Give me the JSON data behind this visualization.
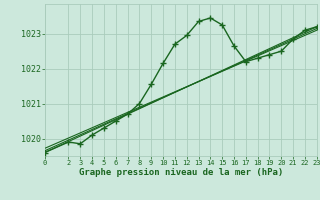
{
  "background_color": "#cce8dc",
  "grid_color": "#aaccbc",
  "line_color": "#1a6620",
  "title": "Graphe pression niveau de la mer (hPa)",
  "xlim": [
    0,
    23
  ],
  "ylim": [
    1019.5,
    1023.85
  ],
  "yticks": [
    1020,
    1021,
    1022,
    1023
  ],
  "xticks": [
    0,
    2,
    3,
    4,
    5,
    6,
    7,
    8,
    9,
    10,
    11,
    12,
    13,
    14,
    15,
    16,
    17,
    18,
    19,
    20,
    21,
    22,
    23
  ],
  "series": [
    {
      "x": [
        0,
        2,
        3,
        4,
        5,
        6,
        7,
        8,
        9,
        10,
        11,
        12,
        13,
        14,
        15,
        16,
        17,
        18,
        19,
        20,
        21,
        22,
        23
      ],
      "y": [
        1019.6,
        1019.9,
        1019.85,
        1020.1,
        1020.3,
        1020.5,
        1020.7,
        1021.0,
        1021.55,
        1022.15,
        1022.7,
        1022.95,
        1023.35,
        1023.45,
        1023.25,
        1022.65,
        1022.2,
        1022.3,
        1022.4,
        1022.5,
        1022.85,
        1023.1,
        1023.2
      ],
      "marker": "+",
      "markersize": 4,
      "linewidth": 1.0,
      "zorder": 5
    },
    {
      "x": [
        0,
        23
      ],
      "y": [
        1019.6,
        1023.2
      ],
      "marker": "None",
      "markersize": 0,
      "linewidth": 0.8,
      "zorder": 3
    },
    {
      "x": [
        0,
        23
      ],
      "y": [
        1019.65,
        1023.15
      ],
      "marker": "None",
      "markersize": 0,
      "linewidth": 0.8,
      "zorder": 3
    },
    {
      "x": [
        0,
        23
      ],
      "y": [
        1019.72,
        1023.1
      ],
      "marker": "None",
      "markersize": 0,
      "linewidth": 0.8,
      "zorder": 3
    }
  ]
}
